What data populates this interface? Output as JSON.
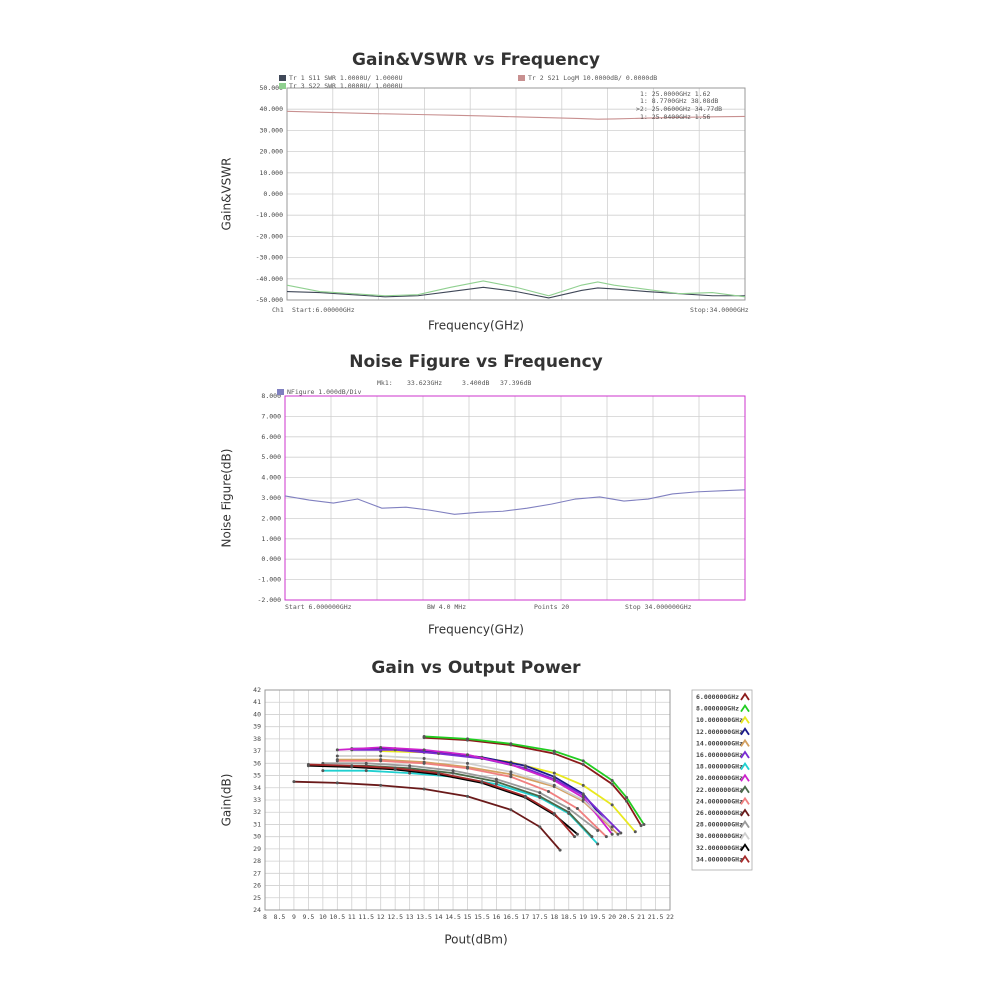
{
  "chart_data": [
    {
      "type": "line",
      "title": "Gain&VSWR vs Frequency",
      "y_label": "Gain&VSWR",
      "x_label": "Frequency(GHz)",
      "xlim": [
        6,
        34
      ],
      "ylim": [
        -50,
        50
      ],
      "yticks": [
        {
          "value": 50,
          "label": "50.000"
        },
        {
          "value": 40,
          "label": "40.000"
        },
        {
          "value": 30,
          "label": "30.000"
        },
        {
          "value": 20,
          "label": "20.000"
        },
        {
          "value": 10,
          "label": "10.000"
        },
        {
          "value": 0,
          "label": "0.000"
        },
        {
          "value": -10,
          "label": "-10.000"
        },
        {
          "value": -20,
          "label": "-20.000"
        },
        {
          "value": -30,
          "label": "-30.000"
        },
        {
          "value": -40,
          "label": "-40.000"
        },
        {
          "value": -50,
          "label": "-50.000"
        }
      ],
      "grid": true,
      "border_color": "#999999",
      "series": [
        {
          "name": "Tr 1  S11 SWR 1.0000U/ 1.0000U",
          "color": "#404858",
          "x": [
            6,
            8,
            10,
            12,
            14,
            16,
            18,
            20,
            22,
            24,
            25,
            26,
            28,
            30,
            32,
            34
          ],
          "values": [
            -46,
            -46.5,
            -47.5,
            -48.5,
            -48,
            -46,
            -44,
            -46,
            -49,
            -45.5,
            -44.3,
            -44.8,
            -46,
            -47,
            -48,
            -48
          ]
        },
        {
          "name": "Tr 2  S21 LogM 10.0000dB/ 0.0000dB",
          "color": "#c89090",
          "x": [
            6,
            8,
            10,
            12,
            14,
            16,
            18,
            20,
            22,
            24,
            25,
            26,
            28,
            30,
            32,
            34
          ],
          "values": [
            39,
            38.6,
            38.2,
            37.8,
            37.5,
            37.2,
            36.8,
            36.4,
            36,
            35.6,
            35.3,
            35.4,
            35.8,
            36.1,
            36.4,
            36.6
          ]
        },
        {
          "name": "Tr 3  S22 SWR 1.0000U/ 1.0000U",
          "color": "#90d090",
          "x": [
            6,
            8,
            10,
            12,
            14,
            16,
            18,
            20,
            22,
            24,
            25,
            26,
            28,
            30,
            32,
            34
          ],
          "values": [
            -43,
            -46,
            -47,
            -48,
            -47.5,
            -44,
            -41,
            -44,
            -48,
            -43,
            -41.5,
            -43,
            -45,
            -47,
            -46.5,
            -48.5
          ]
        }
      ],
      "annotations": [
        "1:   25.0000GHz  1.62",
        "1:   8.7700GHz  38.08dB",
        ">2:  25.0600GHz  34.77dB",
        "1:   25.0400GHz  1.56",
        "Ch1",
        "Start:6.00000GHz",
        "Stop:34.0000GHz"
      ]
    },
    {
      "type": "line",
      "title": "Noise Figure vs Frequency",
      "y_label": "Noise Figure(dB)",
      "x_label": "Frequency(GHz)",
      "xlim": [
        6,
        34
      ],
      "ylim": [
        -2,
        8
      ],
      "yticks": [
        {
          "value": 8,
          "label": "8.000"
        },
        {
          "value": 7,
          "label": "7.000"
        },
        {
          "value": 6,
          "label": "6.000"
        },
        {
          "value": 5,
          "label": "5.000"
        },
        {
          "value": 4,
          "label": "4.000"
        },
        {
          "value": 3,
          "label": "3.000"
        },
        {
          "value": 2,
          "label": "2.000"
        },
        {
          "value": 1,
          "label": "1.000"
        },
        {
          "value": 0,
          "label": "0.000"
        },
        {
          "value": -1,
          "label": "-1.000"
        },
        {
          "value": -2,
          "label": "-2.000"
        }
      ],
      "grid": true,
      "border_color": "#cc33cc",
      "series": [
        {
          "name": "NFigure  1.000dB/Div",
          "color": "#8080c0",
          "x": [
            6,
            7.474,
            8.947,
            10.421,
            11.895,
            13.368,
            14.842,
            16.316,
            17.789,
            19.263,
            20.737,
            22.211,
            23.684,
            25.158,
            26.632,
            28.105,
            29.579,
            31.053,
            32.526,
            34
          ],
          "values": [
            3.1,
            2.9,
            2.75,
            2.95,
            2.5,
            2.55,
            2.4,
            2.2,
            2.3,
            2.35,
            2.5,
            2.7,
            2.95,
            3.05,
            2.85,
            2.95,
            3.2,
            3.3,
            3.35,
            3.4
          ]
        }
      ],
      "annotations": [
        "Mk1:",
        "33.623GHz",
        "3.400dB",
        "37.396dB",
        "Start  6.000000GHz",
        "BW  4.0  MHz",
        "Points  20",
        "Stop  34.000000GHz"
      ]
    },
    {
      "type": "line-marker",
      "title": "Gain vs Output Power",
      "y_label": "Gain(dB)",
      "x_label": "Pout(dBm)",
      "xlim": [
        8,
        22
      ],
      "ylim": [
        24,
        42
      ],
      "xticks": [
        8,
        8.5,
        9,
        9.5,
        10,
        10.5,
        11,
        11.5,
        12,
        12.5,
        13,
        13.5,
        14,
        14.5,
        15,
        15.5,
        16,
        16.5,
        17,
        17.5,
        18,
        18.5,
        19,
        19.5,
        20,
        20.5,
        21,
        21.5,
        22
      ],
      "yticks": [
        24,
        25,
        26,
        27,
        28,
        29,
        30,
        31,
        32,
        33,
        34,
        35,
        36,
        37,
        38,
        39,
        40,
        41,
        42
      ],
      "grid": true,
      "border_color": "#999999",
      "series": [
        {
          "name": "6.000000GHz",
          "color": "#8b1a1a",
          "x": [
            13.5,
            15,
            16.5,
            18,
            19,
            20,
            20.5,
            21
          ],
          "values": [
            38.1,
            37.9,
            37.5,
            36.8,
            35.9,
            34.3,
            32.9,
            30.9
          ]
        },
        {
          "name": "8.000000GHz",
          "color": "#22cc22",
          "x": [
            13.5,
            15,
            16.5,
            18,
            19,
            20,
            20.5,
            21.1
          ],
          "values": [
            38.2,
            38.0,
            37.6,
            37.0,
            36.2,
            34.6,
            33.2,
            31.0
          ]
        },
        {
          "name": "10.000000GHz",
          "color": "#e8e820",
          "x": [
            12,
            13.5,
            15,
            16.5,
            18,
            19,
            20,
            20.8
          ],
          "values": [
            37.0,
            36.9,
            36.6,
            36.1,
            35.2,
            34.2,
            32.6,
            30.4
          ]
        },
        {
          "name": "12.000000GHz",
          "color": "#1a1a8b",
          "x": [
            11,
            12.5,
            14,
            15.5,
            17,
            18,
            19,
            20
          ],
          "values": [
            37.2,
            37.2,
            36.9,
            36.5,
            35.8,
            34.9,
            33.5,
            30.6
          ]
        },
        {
          "name": "14.000000GHz",
          "color": "#d4a060",
          "x": [
            10.5,
            12,
            13.5,
            15,
            16.5,
            18,
            19,
            20.2
          ],
          "values": [
            36.3,
            36.3,
            36.1,
            35.7,
            35.1,
            34.1,
            32.9,
            30.2
          ]
        },
        {
          "name": "16.000000GHz",
          "color": "#7a2ad4",
          "x": [
            11,
            12.5,
            14,
            15.5,
            17,
            18,
            19,
            20.3
          ],
          "values": [
            37.1,
            37.1,
            36.8,
            36.4,
            35.6,
            34.7,
            33.4,
            30.3
          ]
        },
        {
          "name": "18.000000GHz",
          "color": "#20d0d0",
          "x": [
            10,
            11.5,
            13,
            14.5,
            16,
            17.5,
            18.5,
            19.5
          ],
          "values": [
            35.4,
            35.4,
            35.2,
            34.9,
            34.3,
            33.2,
            31.9,
            29.4
          ]
        },
        {
          "name": "20.000000GHz",
          "color": "#cc22cc",
          "x": [
            10.5,
            12,
            13.5,
            15,
            16.5,
            18,
            19,
            20
          ],
          "values": [
            37.1,
            37.3,
            37.1,
            36.7,
            35.9,
            34.6,
            33.2,
            30.2
          ]
        },
        {
          "name": "22.000000GHz",
          "color": "#4a6a4a",
          "x": [
            10,
            11.5,
            13,
            14.5,
            16,
            17.5,
            18.5,
            19.3
          ],
          "values": [
            35.8,
            35.8,
            35.6,
            35.2,
            34.5,
            33.3,
            32.0,
            30.0
          ]
        },
        {
          "name": "24.000000GHz",
          "color": "#f08080",
          "x": [
            10.5,
            12,
            13.5,
            15,
            16.5,
            17.8,
            18.8,
            19.8
          ],
          "values": [
            36.2,
            36.2,
            36.0,
            35.6,
            34.9,
            33.7,
            32.3,
            30.0
          ]
        },
        {
          "name": "26.000000GHz",
          "color": "#6a1a1a",
          "x": [
            9,
            10.5,
            12,
            13.5,
            15,
            16.5,
            17.5,
            18.2
          ],
          "values": [
            34.5,
            34.4,
            34.2,
            33.9,
            33.3,
            32.2,
            30.8,
            28.9
          ]
        },
        {
          "name": "28.000000GHz",
          "color": "#9a9a9a",
          "x": [
            10,
            11.5,
            13,
            14.5,
            16,
            17.5,
            18.5,
            19.5
          ],
          "values": [
            36.0,
            36.0,
            35.8,
            35.4,
            34.7,
            33.6,
            32.3,
            30.5
          ]
        },
        {
          "name": "30.000000GHz",
          "color": "#cfcfcf",
          "x": [
            10.5,
            12,
            13.5,
            15,
            16.5,
            18,
            19,
            20
          ],
          "values": [
            36.6,
            36.6,
            36.4,
            36.0,
            35.3,
            34.2,
            33.0,
            30.8
          ]
        },
        {
          "name": "32.000000GHz",
          "color": "#000000",
          "x": [
            9.5,
            11,
            12.5,
            14,
            15.5,
            17,
            18,
            18.8
          ],
          "values": [
            35.8,
            35.7,
            35.5,
            35.1,
            34.4,
            33.2,
            31.8,
            30.2
          ]
        },
        {
          "name": "34.000000GHz",
          "color": "#a52a2a",
          "x": [
            9.5,
            11,
            12.5,
            14,
            15.5,
            17,
            18,
            18.7
          ],
          "values": [
            35.9,
            35.8,
            35.6,
            35.2,
            34.5,
            33.3,
            31.9,
            30.0
          ]
        }
      ]
    }
  ]
}
